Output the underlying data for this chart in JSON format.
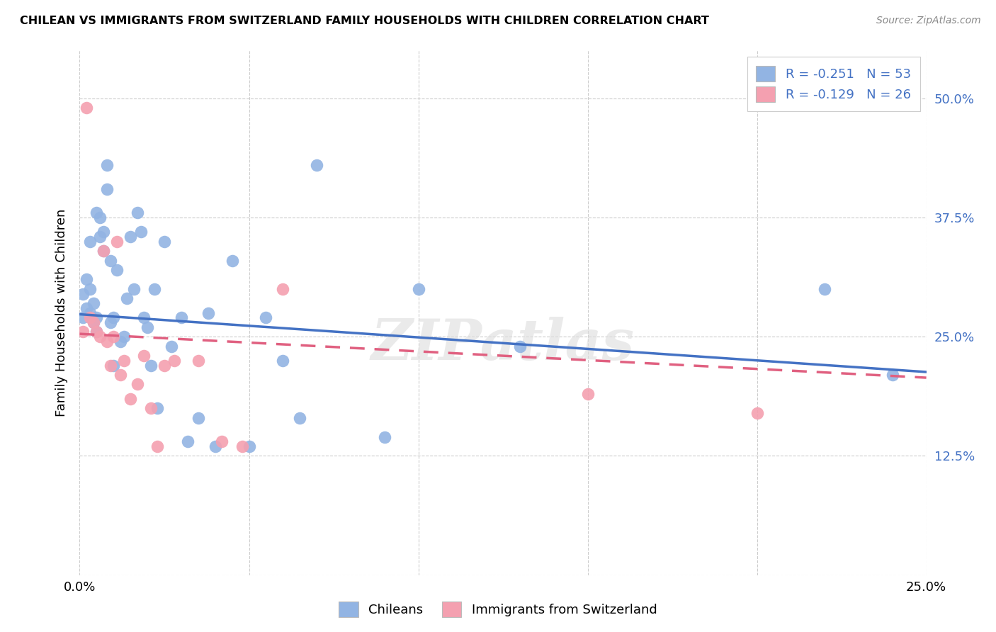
{
  "title": "CHILEAN VS IMMIGRANTS FROM SWITZERLAND FAMILY HOUSEHOLDS WITH CHILDREN CORRELATION CHART",
  "source": "Source: ZipAtlas.com",
  "ylabel": "Family Households with Children",
  "xlabel_chileans": "Chileans",
  "xlabel_immigrants": "Immigrants from Switzerland",
  "xlim": [
    0.0,
    0.25
  ],
  "ylim": [
    0.0,
    0.55
  ],
  "ytick_vals": [
    0.0,
    0.125,
    0.25,
    0.375,
    0.5
  ],
  "ytick_labels": [
    "",
    "12.5%",
    "25.0%",
    "37.5%",
    "50.0%"
  ],
  "xtick_vals": [
    0.0,
    0.05,
    0.1,
    0.15,
    0.2,
    0.25
  ],
  "xtick_labels": [
    "0.0%",
    "",
    "",
    "",
    "",
    "25.0%"
  ],
  "blue_R": -0.251,
  "blue_N": 53,
  "pink_R": -0.129,
  "pink_N": 26,
  "blue_color": "#92B4E3",
  "pink_color": "#F4A0B0",
  "blue_line_color": "#4472C4",
  "pink_line_color": "#E06080",
  "watermark": "ZIPatlas",
  "blue_x": [
    0.001,
    0.001,
    0.002,
    0.002,
    0.003,
    0.003,
    0.003,
    0.004,
    0.004,
    0.005,
    0.005,
    0.005,
    0.006,
    0.006,
    0.007,
    0.007,
    0.008,
    0.008,
    0.009,
    0.009,
    0.01,
    0.01,
    0.011,
    0.012,
    0.013,
    0.014,
    0.015,
    0.016,
    0.017,
    0.018,
    0.019,
    0.02,
    0.021,
    0.022,
    0.023,
    0.025,
    0.027,
    0.03,
    0.032,
    0.035,
    0.038,
    0.04,
    0.045,
    0.05,
    0.055,
    0.06,
    0.065,
    0.07,
    0.09,
    0.1,
    0.13,
    0.22,
    0.24
  ],
  "blue_y": [
    0.27,
    0.295,
    0.28,
    0.31,
    0.275,
    0.3,
    0.35,
    0.265,
    0.285,
    0.255,
    0.27,
    0.38,
    0.355,
    0.375,
    0.34,
    0.36,
    0.405,
    0.43,
    0.33,
    0.265,
    0.22,
    0.27,
    0.32,
    0.245,
    0.25,
    0.29,
    0.355,
    0.3,
    0.38,
    0.36,
    0.27,
    0.26,
    0.22,
    0.3,
    0.175,
    0.35,
    0.24,
    0.27,
    0.14,
    0.165,
    0.275,
    0.135,
    0.33,
    0.135,
    0.27,
    0.225,
    0.165,
    0.43,
    0.145,
    0.3,
    0.24,
    0.3,
    0.21
  ],
  "pink_x": [
    0.001,
    0.002,
    0.003,
    0.004,
    0.005,
    0.006,
    0.007,
    0.008,
    0.009,
    0.01,
    0.011,
    0.012,
    0.013,
    0.015,
    0.017,
    0.019,
    0.021,
    0.023,
    0.025,
    0.028,
    0.035,
    0.042,
    0.048,
    0.06,
    0.15,
    0.2
  ],
  "pink_y": [
    0.255,
    0.49,
    0.27,
    0.265,
    0.255,
    0.25,
    0.34,
    0.245,
    0.22,
    0.25,
    0.35,
    0.21,
    0.225,
    0.185,
    0.2,
    0.23,
    0.175,
    0.135,
    0.22,
    0.225,
    0.225,
    0.14,
    0.135,
    0.3,
    0.19,
    0.17
  ],
  "blue_line_x0": 0.0,
  "blue_line_y0": 0.2735,
  "blue_line_x1": 0.25,
  "blue_line_y1": 0.213,
  "pink_line_x0": 0.0,
  "pink_line_y0": 0.253,
  "pink_line_x1": 0.25,
  "pink_line_y1": 0.207
}
